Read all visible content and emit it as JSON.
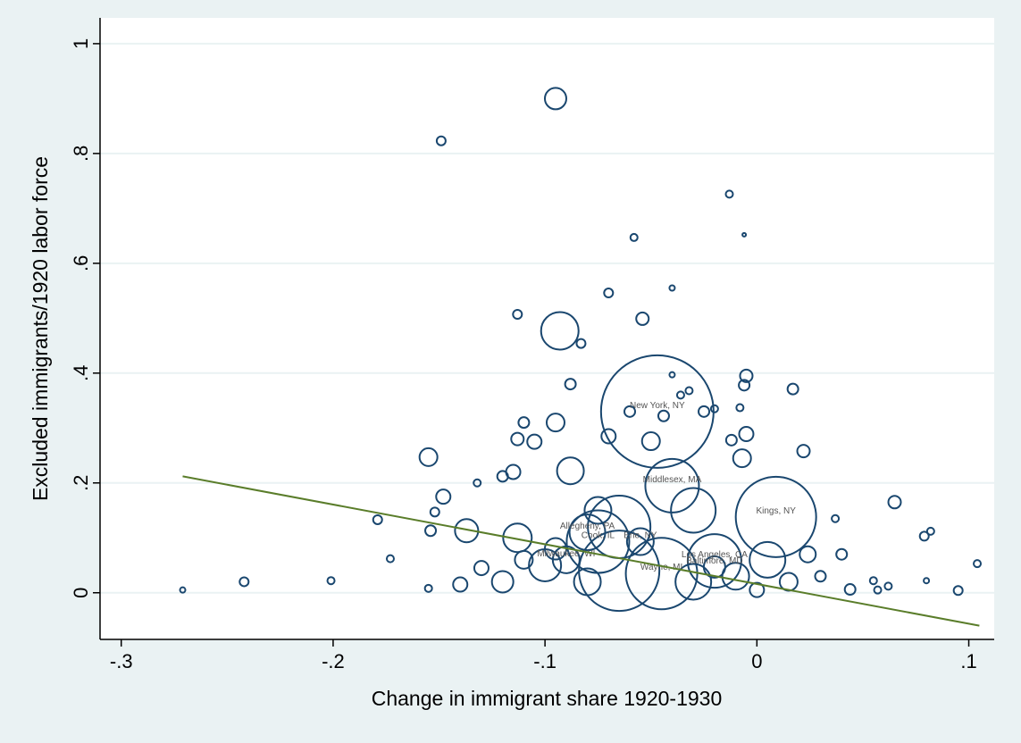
{
  "chart_data": {
    "type": "scatter",
    "x_label": "Change in immigrant share 1920-1930",
    "y_label": "Excluded immigrants/1920 labor force",
    "x": [
      -0.271,
      -0.242,
      -0.201,
      -0.179,
      -0.173,
      -0.149,
      -0.095,
      -0.058,
      -0.013,
      -0.006,
      -0.07,
      -0.04,
      -0.113,
      -0.054,
      -0.093,
      -0.083,
      -0.047,
      -0.005,
      -0.006,
      0.017,
      -0.088,
      -0.04,
      -0.036,
      -0.032,
      -0.044,
      -0.095,
      -0.11,
      -0.06,
      -0.025,
      -0.008,
      -0.02,
      -0.05,
      -0.07,
      -0.105,
      -0.113,
      -0.155,
      -0.088,
      -0.005,
      -0.007,
      0.022,
      -0.012,
      -0.115,
      -0.12,
      -0.132,
      -0.148,
      -0.04,
      0.009,
      -0.065,
      -0.03,
      -0.137,
      -0.113,
      -0.075,
      -0.045,
      -0.065,
      -0.02,
      0.005,
      -0.1,
      -0.12,
      -0.14,
      -0.13,
      -0.155,
      -0.154,
      -0.152,
      0.024,
      0.03,
      0.037,
      0.04,
      0.044,
      0.057,
      0.062,
      0.065,
      0.079,
      0.082,
      0.08,
      0.095,
      0.104,
      0.015,
      -0.01,
      -0.03,
      -0.08,
      -0.055,
      -0.075,
      -0.095,
      0.0,
      -0.08,
      -0.11,
      0.055,
      -0.02,
      -0.09
    ],
    "y": [
      0.005,
      0.02,
      0.022,
      0.133,
      0.062,
      0.823,
      0.9,
      0.647,
      0.726,
      0.652,
      0.546,
      0.555,
      0.507,
      0.499,
      0.477,
      0.454,
      0.33,
      0.395,
      0.378,
      0.371,
      0.38,
      0.397,
      0.36,
      0.368,
      0.322,
      0.31,
      0.31,
      0.33,
      0.33,
      0.337,
      0.335,
      0.276,
      0.285,
      0.275,
      0.28,
      0.247,
      0.222,
      0.289,
      0.245,
      0.258,
      0.278,
      0.22,
      0.212,
      0.2,
      0.175,
      0.195,
      0.138,
      0.12,
      0.15,
      0.113,
      0.1,
      0.093,
      0.035,
      0.04,
      0.058,
      0.06,
      0.05,
      0.02,
      0.015,
      0.045,
      0.008,
      0.113,
      0.147,
      0.07,
      0.03,
      0.135,
      0.07,
      0.006,
      0.005,
      0.012,
      0.165,
      0.103,
      0.112,
      0.022,
      0.004,
      0.053,
      0.02,
      0.03,
      0.02,
      0.02,
      0.093,
      0.15,
      0.08,
      0.005,
      0.11,
      0.06,
      0.022,
      0.047,
      0.06
    ],
    "sizes": [
      9,
      25,
      16,
      25,
      16,
      25,
      144,
      16,
      16,
      4,
      25,
      9,
      25,
      49,
      441,
      25,
      3969,
      49,
      36,
      36,
      36,
      9,
      16,
      16,
      36,
      100,
      36,
      36,
      36,
      16,
      16,
      100,
      64,
      64,
      49,
      100,
      225,
      64,
      100,
      49,
      36,
      64,
      36,
      16,
      64,
      900,
      2025,
      1225,
      625,
      169,
      256,
      1225,
      1600,
      2025,
      900,
      400,
      324,
      144,
      64,
      64,
      16,
      36,
      25,
      81,
      36,
      16,
      36,
      36,
      16,
      16,
      49,
      25,
      16,
      9,
      25,
      16,
      100,
      225,
      400,
      225,
      225,
      225,
      144,
      64,
      400,
      100,
      16,
      144,
      225
    ],
    "labels": [
      null,
      null,
      null,
      null,
      null,
      null,
      null,
      null,
      null,
      null,
      null,
      null,
      null,
      null,
      null,
      null,
      "New York, NY",
      null,
      null,
      null,
      null,
      null,
      null,
      null,
      null,
      null,
      null,
      null,
      null,
      null,
      null,
      null,
      null,
      null,
      null,
      null,
      null,
      null,
      null,
      null,
      null,
      null,
      null,
      null,
      null,
      "Middlesex, MA",
      "Kings, NY",
      null,
      null,
      null,
      null,
      "Cook, IL",
      "Wayne, MI",
      null,
      "Los Angeles, CA",
      null,
      null,
      null,
      null,
      null,
      null,
      null,
      null,
      null,
      null,
      null,
      null,
      null,
      null,
      null,
      null,
      null,
      null,
      null,
      null,
      null,
      null,
      null,
      null,
      null,
      "Erie, NY",
      null,
      null,
      null,
      "Allegheny, PA",
      null,
      null,
      "Baltimore, MD",
      "Milwaukee, WI"
    ],
    "color": "#1a476f",
    "fit_line": {
      "x": [
        -0.271,
        0.105
      ],
      "y": [
        0.212,
        -0.06
      ],
      "color": "#5a7d2a"
    },
    "xlim": [
      -0.31,
      0.112
    ],
    "ylim": [
      -0.085,
      1.047
    ],
    "xticks": [
      {
        "value": -0.3,
        "label": "-.3"
      },
      {
        "value": -0.2,
        "label": "-.2"
      },
      {
        "value": -0.1,
        "label": "-.1"
      },
      0,
      {
        "value": 0.1,
        "label": ".1"
      }
    ],
    "yticks": [
      0,
      {
        "value": 0.2,
        "label": ".2"
      },
      {
        "value": 0.4,
        "label": ".4"
      },
      {
        "value": 0.6,
        "label": ".6"
      },
      {
        "value": 0.8,
        "label": ".8"
      },
      1
    ],
    "grid": true
  }
}
